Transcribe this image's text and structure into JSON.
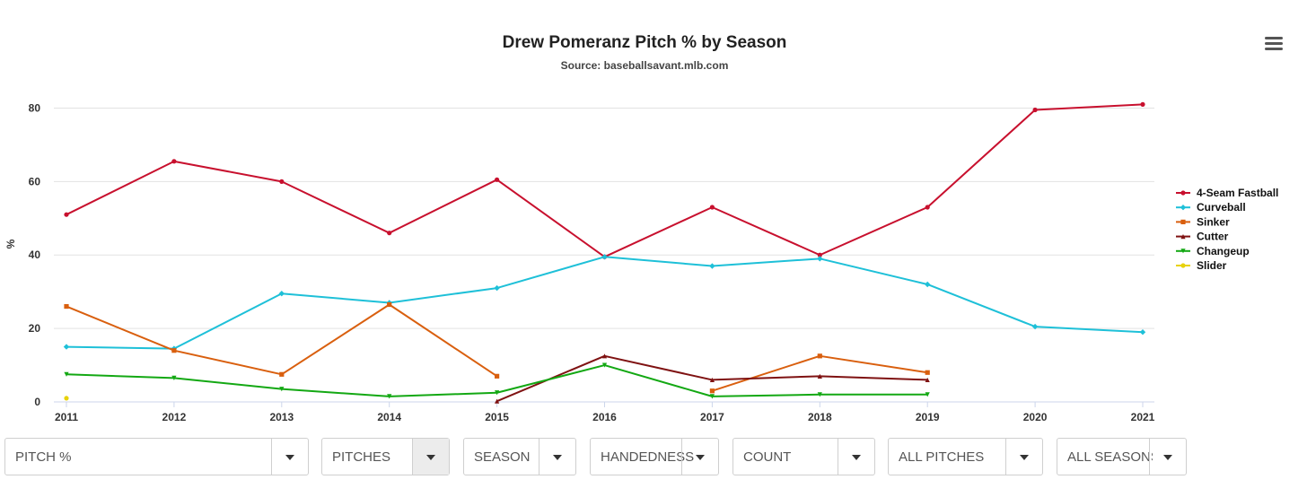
{
  "chart_data": {
    "type": "line",
    "title": "Drew Pomeranz Pitch % by Season",
    "subtitle": "Source: baseballsavant.mlb.com",
    "xlabel": "",
    "ylabel": "%",
    "categories": [
      "2011",
      "2012",
      "2013",
      "2014",
      "2015",
      "2016",
      "2017",
      "2018",
      "2019",
      "2020",
      "2021"
    ],
    "ylim": [
      0,
      85
    ],
    "yticks": [
      0,
      20,
      40,
      60,
      80
    ],
    "grid": true,
    "legend_position": "right",
    "series": [
      {
        "name": "4-Seam Fastball",
        "color": "#c8102e",
        "marker": "circle",
        "values": [
          51,
          65.5,
          60,
          46,
          60.5,
          39.5,
          53,
          40,
          53,
          79.5,
          81
        ]
      },
      {
        "name": "Curveball",
        "color": "#1ec0d8",
        "marker": "diamond",
        "values": [
          15,
          14.5,
          29.5,
          27,
          31,
          39.5,
          37,
          39,
          32,
          20.5,
          19
        ]
      },
      {
        "name": "Sinker",
        "color": "#d95f0e",
        "marker": "square",
        "values": [
          26,
          14,
          7.5,
          26.5,
          7,
          null,
          3,
          12.5,
          8,
          null,
          null
        ]
      },
      {
        "name": "Cutter",
        "color": "#7f1212",
        "marker": "triangle",
        "values": [
          null,
          null,
          null,
          null,
          0.2,
          12.5,
          6,
          7,
          6,
          null,
          null
        ]
      },
      {
        "name": "Changeup",
        "color": "#13a813",
        "marker": "triangle-down",
        "values": [
          7.5,
          6.5,
          3.5,
          1.5,
          2.5,
          10,
          1.5,
          2,
          2,
          null,
          null
        ]
      },
      {
        "name": "Slider",
        "color": "#e8d20a",
        "marker": "circle",
        "values": [
          1,
          null,
          null,
          null,
          null,
          null,
          null,
          null,
          null,
          null,
          null
        ]
      }
    ]
  },
  "menu": {
    "icon": "hamburger-menu-icon"
  },
  "controls": [
    {
      "label": "PITCH %"
    },
    {
      "label": "PITCHES"
    },
    {
      "label": "SEASON"
    },
    {
      "label": "HANDEDNESS"
    },
    {
      "label": "COUNT"
    },
    {
      "label": "ALL PITCHES"
    },
    {
      "label": "ALL SEASONS"
    }
  ]
}
